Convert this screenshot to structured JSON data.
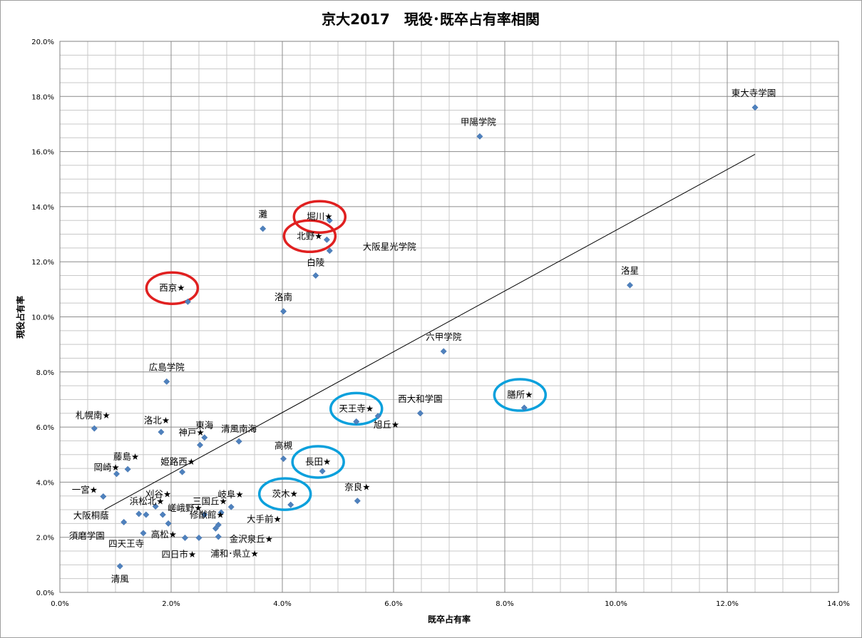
{
  "chart_data": {
    "type": "scatter",
    "title": "京大2017　現役･既卒占有率相関",
    "xlabel": "既卒占有率",
    "ylabel": "現役占有率",
    "xlim": [
      0,
      14
    ],
    "ylim": [
      0,
      20
    ],
    "x_ticks": [
      "0.0%",
      "2.0%",
      "4.0%",
      "6.0%",
      "8.0%",
      "10.0%",
      "12.0%",
      "14.0%"
    ],
    "y_ticks": [
      "0.0%",
      "2.0%",
      "4.0%",
      "6.0%",
      "8.0%",
      "10.0%",
      "12.0%",
      "14.0%",
      "16.0%",
      "18.0%",
      "20.0%"
    ],
    "grid": true,
    "marker_color": "#4F81BD",
    "trendline": {
      "x": [
        0.8,
        12.5
      ],
      "y": [
        3.0,
        15.9
      ],
      "color": "#000000"
    },
    "points": [
      {
        "x": 12.5,
        "y": 17.6,
        "label": "東大寺学園"
      },
      {
        "x": 7.55,
        "y": 16.55,
        "label": "甲陽学院"
      },
      {
        "x": 3.65,
        "y": 13.2,
        "label": "灘"
      },
      {
        "x": 4.85,
        "y": 13.5,
        "label": "堀川★",
        "note": "",
        "ring": "red"
      },
      {
        "x": 4.8,
        "y": 12.8,
        "label": "北野★",
        "ring": "red"
      },
      {
        "x": 4.85,
        "y": 12.4,
        "label": "大阪星光学院"
      },
      {
        "x": 4.6,
        "y": 11.5,
        "label": "白陵"
      },
      {
        "x": 10.25,
        "y": 11.15,
        "label": "洛星"
      },
      {
        "x": 2.3,
        "y": 10.55,
        "label": "西京★",
        "ring": "red"
      },
      {
        "x": 4.02,
        "y": 10.2,
        "label": "洛南"
      },
      {
        "x": 6.9,
        "y": 8.75,
        "label": "六甲学院"
      },
      {
        "x": 1.92,
        "y": 7.65,
        "label": "広島学院"
      },
      {
        "x": 8.35,
        "y": 6.7,
        "label": "膳所★",
        "ring": "blue"
      },
      {
        "x": 6.48,
        "y": 6.5,
        "label": "西大和学園"
      },
      {
        "x": 5.72,
        "y": 6.4,
        "label": ""
      },
      {
        "x": 5.33,
        "y": 6.2,
        "label": "天王寺★",
        "ring": "blue"
      },
      {
        "x": 0.62,
        "y": 5.95,
        "label": "札幌南★"
      },
      {
        "x": 1.82,
        "y": 5.82,
        "label": "洛北★"
      },
      {
        "x": 2.6,
        "y": 5.62,
        "label": "東海"
      },
      {
        "x": 3.22,
        "y": 5.48,
        "label": "清風南海"
      },
      {
        "x": 2.52,
        "y": 5.35,
        "label": "神戸★"
      },
      {
        "x": 6.0,
        "y": 5.72,
        "label": "旭丘★",
        "hidden_marker": true
      },
      {
        "x": 4.02,
        "y": 4.85,
        "label": "高槻"
      },
      {
        "x": 4.72,
        "y": 4.4,
        "label": "長田★",
        "ring": "blue"
      },
      {
        "x": 1.22,
        "y": 4.47,
        "label": "藤島★"
      },
      {
        "x": 2.2,
        "y": 4.37,
        "label": "姫路西★"
      },
      {
        "x": 1.02,
        "y": 4.3,
        "label": "岡崎★"
      },
      {
        "x": 0.78,
        "y": 3.48,
        "label": "一宮★"
      },
      {
        "x": 5.35,
        "y": 3.32,
        "label": "奈良★"
      },
      {
        "x": 4.15,
        "y": 3.18,
        "label": "茨木★",
        "ring": "blue"
      },
      {
        "x": 1.72,
        "y": 3.12,
        "label": "浜松北★"
      },
      {
        "x": 3.08,
        "y": 3.1,
        "label": ""
      },
      {
        "x": 1.95,
        "y": 3.5,
        "label": "刈谷★",
        "hidden_marker": true
      },
      {
        "x": 2.85,
        "y": 3.35,
        "label": "三国丘★",
        "hidden_marker": true
      },
      {
        "x": 3.25,
        "y": 3.55,
        "label": "岐阜★",
        "hidden_marker": true
      },
      {
        "x": 1.42,
        "y": 2.85,
        "label": ""
      },
      {
        "x": 1.55,
        "y": 2.82,
        "label": ""
      },
      {
        "x": 1.85,
        "y": 2.82,
        "label": ""
      },
      {
        "x": 2.6,
        "y": 2.82,
        "label": ""
      },
      {
        "x": 2.9,
        "y": 2.9,
        "label": ""
      },
      {
        "x": 2.3,
        "y": 3.05,
        "label": "嵯峨野★",
        "hidden_marker": true
      },
      {
        "x": 1.15,
        "y": 2.55,
        "label": "大阪桐蔭"
      },
      {
        "x": 1.95,
        "y": 2.5,
        "label": ""
      },
      {
        "x": 2.85,
        "y": 2.45,
        "label": "修猷館★"
      },
      {
        "x": 2.8,
        "y": 2.32,
        "label": ""
      },
      {
        "x": 3.85,
        "y": 2.75,
        "label": "大手前★",
        "hidden_marker": true
      },
      {
        "x": 1.5,
        "y": 2.15,
        "label": ""
      },
      {
        "x": 2.1,
        "y": 2.15,
        "label": "高松★",
        "hidden_marker": true
      },
      {
        "x": 2.25,
        "y": 1.98,
        "label": ""
      },
      {
        "x": 2.5,
        "y": 1.98,
        "label": ""
      },
      {
        "x": 2.85,
        "y": 2.02,
        "label": ""
      },
      {
        "x": 3.85,
        "y": 1.98,
        "label": "金沢泉丘★",
        "hidden_marker": true
      },
      {
        "x": 1.15,
        "y": 2.1,
        "label": "須磨学園",
        "hidden_marker": true
      },
      {
        "x": 1.45,
        "y": 1.65,
        "label": "四天王寺",
        "hidden_marker": true
      },
      {
        "x": 2.6,
        "y": 1.35,
        "label": "四日市★",
        "hidden_marker": true
      },
      {
        "x": 3.5,
        "y": 1.4,
        "label": "浦和･県立★",
        "hidden_marker": true
      },
      {
        "x": 1.08,
        "y": 0.95,
        "label": "清風"
      }
    ]
  }
}
